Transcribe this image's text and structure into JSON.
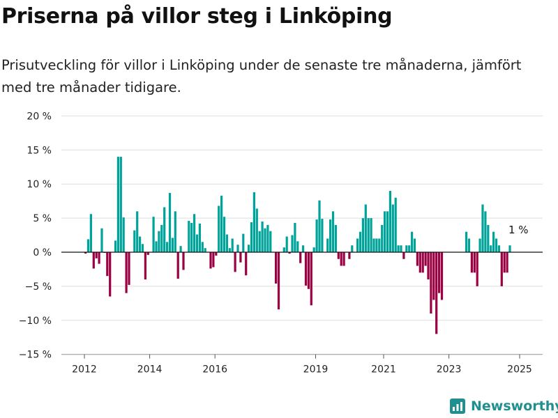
{
  "header": {
    "title": "Priserna på villor steg i Linköping",
    "subtitle": "Prisutveckling för villor i Linköping under de senaste tre månaderna, jämfört med tre månader tidigare."
  },
  "brand": {
    "name": "Newsworthy"
  },
  "colors": {
    "positive": "#00a39a",
    "negative": "#9b0042",
    "grid": "#dddddd",
    "axis": "#111111",
    "brand": "#1f8f8f"
  },
  "chart_data": {
    "type": "bar",
    "title": "Priserna på villor steg i Linköping",
    "xlabel": "",
    "ylabel": "",
    "ylim": [
      -15,
      20
    ],
    "y_ticks": [
      -15,
      -10,
      -5,
      0,
      5,
      10,
      15,
      20
    ],
    "y_tick_labels": [
      "−15 %",
      "−10 %",
      "−5 %",
      "0 %",
      "5 %",
      "10 %",
      "15 %",
      "20 %"
    ],
    "x_ticks": [
      "2012",
      "2014",
      "2016",
      "2019",
      "2021",
      "2023",
      "2025"
    ],
    "grid": true,
    "annotation": "1 %",
    "x_start": "2012-01",
    "values": [
      -0.2,
      1.9,
      5.6,
      -2.4,
      -0.9,
      -1.7,
      3.5,
      -0.1,
      -3.5,
      -6.5,
      0.0,
      1.7,
      14.0,
      14.0,
      5.1,
      -6.0,
      -4.8,
      0.0,
      3.2,
      6.0,
      2.3,
      1.2,
      -4.0,
      -0.4,
      0.0,
      5.2,
      1.6,
      3.1,
      4.0,
      6.6,
      1.5,
      8.7,
      2.1,
      6.0,
      -3.9,
      0.9,
      -2.6,
      0.0,
      4.6,
      4.3,
      5.6,
      2.6,
      4.2,
      1.5,
      0.6,
      0.0,
      -2.4,
      -2.2,
      -0.5,
      6.8,
      8.3,
      5.2,
      2.6,
      0.6,
      2.0,
      -2.9,
      1.1,
      -1.5,
      2.7,
      -3.4,
      1.1,
      4.4,
      8.8,
      6.4,
      3.1,
      4.5,
      3.5,
      4.0,
      3.1,
      0.0,
      -4.6,
      -8.4,
      0.0,
      0.7,
      2.3,
      -0.2,
      2.5,
      4.3,
      1.6,
      -1.6,
      1.0,
      -4.9,
      -5.4,
      -7.8,
      0.7,
      4.8,
      7.6,
      4.9,
      0.0,
      2.0,
      4.8,
      6.0,
      4.0,
      -1.0,
      -2.0,
      -2.0,
      0.0,
      -1.0,
      1.0,
      0.0,
      2.0,
      3.0,
      5.0,
      7.0,
      5.0,
      5.0,
      2.0,
      2.0,
      2.0,
      4.0,
      6.0,
      6.0,
      9.0,
      7.0,
      8.0,
      1.0,
      1.0,
      -1.0,
      1.0,
      1.0,
      3.0,
      2.0,
      -2.0,
      -3.0,
      -3.0,
      -2.0,
      -4.0,
      -9.0,
      -7.0,
      -12.0,
      -6.0,
      -7.0,
      0.0,
      0.0,
      0.0,
      0.0,
      0.0,
      0.0,
      0.0,
      0.0,
      3.0,
      2.0,
      -3.0,
      -3.0,
      -5.0,
      2.0,
      7.0,
      6.0,
      4.0,
      1.0,
      3.0,
      2.0,
      1.0,
      -5.0,
      -3.0,
      -3.0,
      1.0
    ]
  }
}
